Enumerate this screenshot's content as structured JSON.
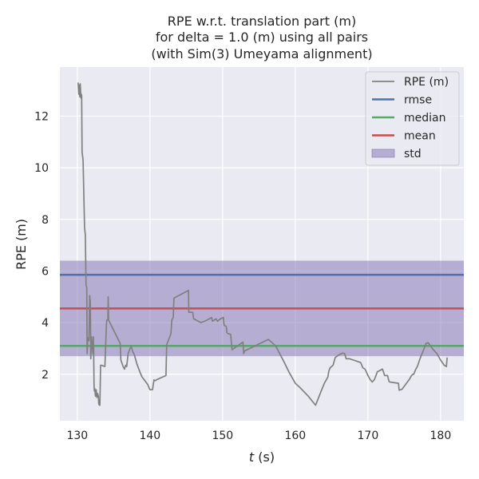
{
  "chart_data": {
    "type": "line",
    "title_lines": [
      "RPE w.r.t. translation part (m)",
      "for delta = 1.0 (m) using all pairs",
      "(with Sim(3) Umeyama alignment)"
    ],
    "xlabel_italic": "t",
    "xlabel_rest": " (s)",
    "ylabel": "RPE (m)",
    "xlim": [
      127.6,
      183.2
    ],
    "ylim": [
      0.2,
      13.9
    ],
    "xticks": [
      130,
      140,
      150,
      160,
      170,
      180
    ],
    "yticks": [
      2,
      4,
      6,
      8,
      10,
      12
    ],
    "grid": true,
    "legend_position": "top-right",
    "colors": {
      "background": "#eaeaf2",
      "grid": "#ffffff",
      "rpe": "#808080",
      "rmse": "#4c72b0",
      "median": "#55a868",
      "mean": "#c44e52",
      "std": "#8172b2"
    },
    "series": [
      {
        "name": "RPE (m)",
        "x": [
          130.1,
          130.2,
          130.3,
          130.35,
          130.4,
          130.5,
          130.55,
          130.6,
          130.65,
          130.75,
          130.8,
          131.0,
          131.1,
          131.2,
          131.3,
          131.35,
          131.45,
          131.6,
          131.7,
          131.8,
          131.85,
          131.95,
          132.05,
          132.15,
          132.2,
          132.25,
          132.3,
          132.35,
          132.4,
          132.5,
          132.55,
          132.6,
          132.7,
          132.8,
          132.9,
          132.95,
          133.05,
          133.1,
          133.2,
          133.3,
          133.8,
          134.0,
          134.05,
          134.2,
          134.25,
          134.3,
          135.9,
          136.0,
          136.3,
          136.5,
          136.65,
          136.8,
          137.0,
          137.4,
          137.6,
          137.85,
          138.2,
          138.6,
          138.9,
          139.3,
          139.7,
          140.0,
          140.35,
          140.55,
          140.7,
          141.0,
          142.2,
          142.3,
          142.8,
          142.9,
          143.0,
          143.2,
          143.3,
          145.3,
          145.35,
          145.9,
          146.0,
          147.0,
          147.5,
          148.5,
          148.6,
          149.1,
          149.3,
          149.7,
          150.1,
          150.2,
          150.5,
          150.6,
          151.0,
          151.1,
          151.3,
          152.8,
          152.9,
          153.0,
          156.3,
          157.3,
          158.5,
          159.2,
          160.0,
          160.6,
          161.8,
          162.8,
          163.5,
          164.0,
          164.5,
          164.6,
          164.8,
          165.2,
          165.5,
          166.0,
          166.5,
          166.8,
          167.0,
          167.5,
          168.0,
          168.5,
          169.0,
          169.3,
          169.6,
          170.0,
          170.3,
          170.6,
          170.9,
          171.3,
          171.7,
          172.0,
          172.3,
          172.7,
          172.9,
          173.0,
          174.2,
          174.3,
          174.5,
          174.7,
          174.9,
          175.3,
          175.7,
          176.0,
          176.2,
          176.3,
          176.6,
          176.8,
          177.1,
          177.3,
          177.6,
          177.8,
          178.0,
          178.3,
          178.6,
          179.0,
          179.5,
          180.0,
          180.5,
          180.8,
          180.9
        ],
        "y": [
          13.3,
          12.85,
          13.2,
          12.75,
          13.25,
          12.7,
          12.85,
          12.8,
          10.6,
          10.4,
          10.25,
          7.7,
          7.4,
          5.45,
          5.35,
          2.8,
          3.4,
          3.3,
          5.05,
          4.8,
          2.6,
          3.45,
          3.1,
          2.8,
          3.45,
          2.95,
          1.6,
          1.35,
          1.45,
          1.15,
          1.35,
          1.4,
          1.1,
          1.25,
          1.15,
          0.85,
          0.8,
          0.8,
          2.35,
          2.35,
          2.3,
          3.85,
          4.1,
          4.1,
          5.0,
          4.1,
          3.2,
          2.55,
          2.3,
          2.2,
          2.35,
          2.3,
          2.8,
          3.1,
          2.9,
          2.75,
          2.4,
          2.1,
          1.9,
          1.75,
          1.6,
          1.4,
          1.4,
          1.78,
          1.75,
          1.8,
          1.95,
          3.15,
          3.5,
          3.6,
          4.1,
          4.2,
          4.95,
          5.25,
          4.4,
          4.4,
          4.15,
          4.0,
          4.05,
          4.2,
          4.05,
          4.15,
          4.05,
          4.15,
          4.2,
          3.9,
          3.85,
          3.6,
          3.55,
          3.55,
          2.95,
          3.25,
          2.8,
          2.9,
          3.35,
          3.1,
          2.45,
          2.05,
          1.65,
          1.5,
          1.15,
          0.8,
          1.3,
          1.65,
          1.9,
          2.1,
          2.25,
          2.35,
          2.65,
          2.75,
          2.82,
          2.8,
          2.6,
          2.6,
          2.55,
          2.5,
          2.45,
          2.25,
          2.2,
          1.95,
          1.8,
          1.7,
          1.8,
          2.1,
          2.15,
          2.2,
          1.95,
          1.95,
          1.72,
          1.7,
          1.65,
          1.38,
          1.4,
          1.42,
          1.5,
          1.65,
          1.8,
          1.95,
          2.0,
          2.0,
          2.2,
          2.3,
          2.55,
          2.7,
          2.9,
          3.05,
          3.2,
          3.22,
          3.1,
          2.95,
          2.8,
          2.55,
          2.35,
          2.3,
          2.65
        ]
      },
      {
        "name": "rmse",
        "value": 5.85
      },
      {
        "name": "median",
        "value": 3.1
      },
      {
        "name": "mean",
        "value": 4.55
      },
      {
        "name": "std",
        "range": [
          2.7,
          6.4
        ]
      }
    ]
  }
}
